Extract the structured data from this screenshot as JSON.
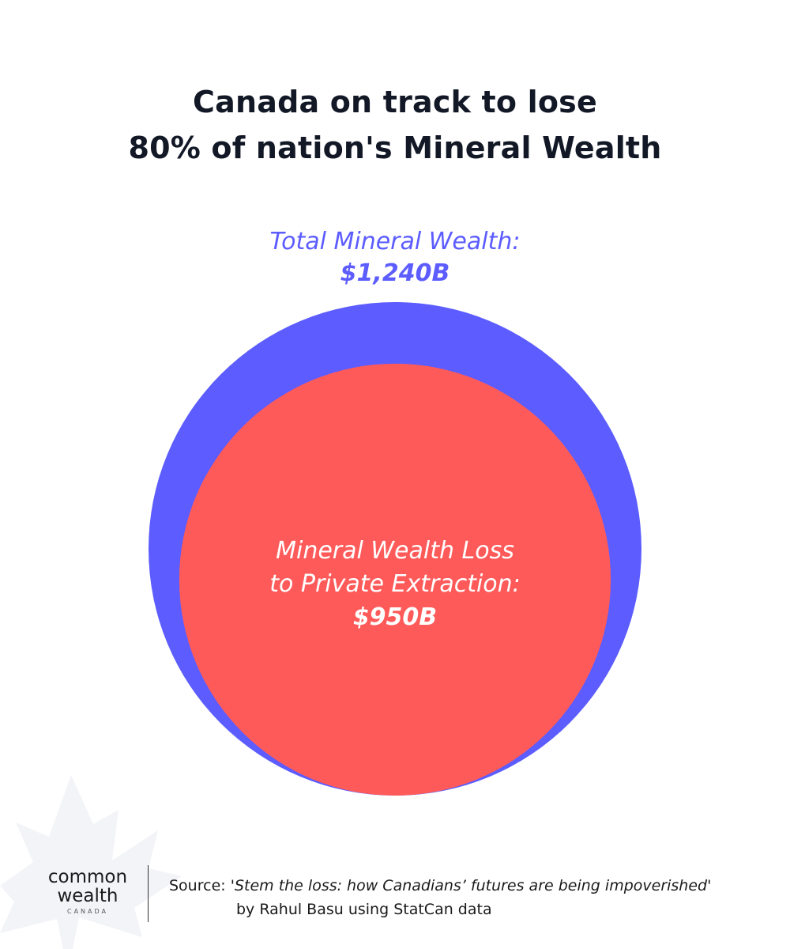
{
  "title": {
    "line1": "Canada on track to lose",
    "line2": "80% of nation's Mineral Wealth"
  },
  "chart_data": {
    "type": "bubble",
    "series": [
      {
        "name": "Total Mineral Wealth:",
        "value": 1240,
        "label": "$1,240B",
        "color": "#5c5cff"
      },
      {
        "name": "Mineral Wealth Loss to Private Extraction:",
        "value": 950,
        "label": "$950B",
        "color": "#ff5a5a"
      }
    ]
  },
  "labels": {
    "total_name": "Total Mineral Wealth:",
    "total_value": "$1,240B",
    "loss_line1": "Mineral Wealth Loss",
    "loss_line2": "to Private Extraction:",
    "loss_value": "$950B"
  },
  "footer": {
    "logo_line1": "common",
    "logo_line2": "wealth",
    "logo_line3": "CANADA",
    "source_prefix": "Source:",
    "source_title": "'Stem the loss: how Canadians’ futures are being impoverished'",
    "source_line2": "by Rahul Basu using StatCan data"
  },
  "icons": {
    "watermark": "maple-leaf-watermark-icon"
  },
  "colors": {
    "total": "#5c5cff",
    "loss": "#ff5a5a",
    "title": "#121826",
    "watermark": "#f3f4f8"
  }
}
